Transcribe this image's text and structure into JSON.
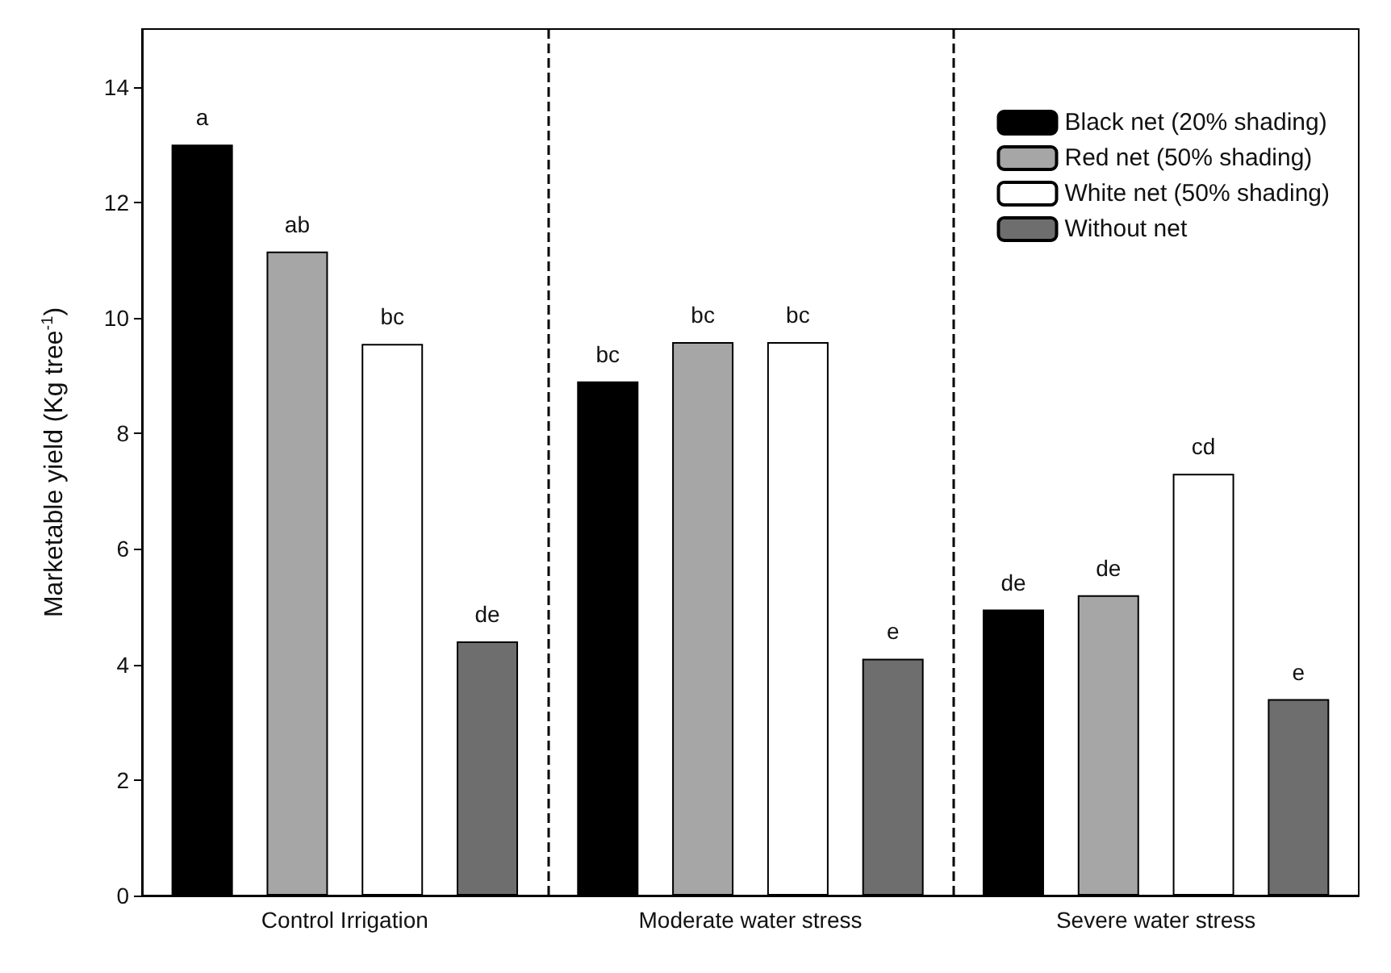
{
  "chart_data": {
    "type": "bar",
    "ylabel": "Marketable yield (Kg tree$^{-1}$)",
    "categories": [
      "Control Irrigation",
      "Moderate water stress",
      "Severe water stress"
    ],
    "series": [
      {
        "name": "Black net (20% shading)",
        "color": "#000000",
        "values": [
          13.0,
          8.9,
          4.95
        ],
        "value_labels": [
          "a",
          "bc",
          "de"
        ]
      },
      {
        "name": "Red net (50% shading)",
        "color": "#a6a6a6",
        "values": [
          11.15,
          9.58,
          5.2
        ],
        "value_labels": [
          "ab",
          "bc",
          "de"
        ]
      },
      {
        "name": "White net (50% shading)",
        "color": "#ffffff",
        "values": [
          9.55,
          9.58,
          7.3
        ],
        "value_labels": [
          "bc",
          "bc",
          "cd"
        ]
      },
      {
        "name": "Without net",
        "color": "#6e6e6e",
        "values": [
          4.4,
          4.1,
          3.4
        ],
        "value_labels": [
          "de",
          "e",
          "e"
        ]
      }
    ],
    "ylim": [
      0,
      15
    ],
    "yticks": [
      0,
      2,
      4,
      6,
      8,
      10,
      12,
      14
    ],
    "grid": false,
    "legend": "top right"
  }
}
